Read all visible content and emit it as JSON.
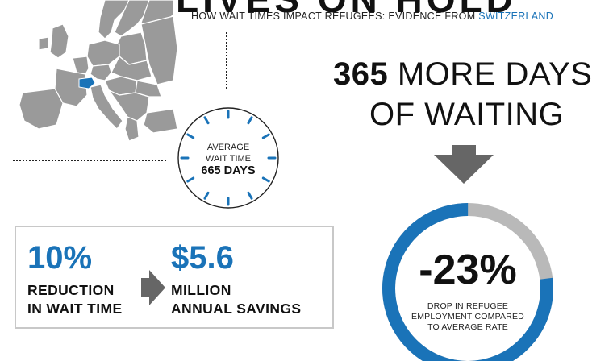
{
  "header": {
    "title": "LIVES ON HOLD",
    "subtitle_prefix": "HOW WAIT TIMES IMPACT REFUGEES: EVIDENCE FROM ",
    "subtitle_highlight": "SWITZERLAND"
  },
  "clock": {
    "line1": "AVERAGE",
    "line2": "WAIT TIME",
    "line3": "665 DAYS"
  },
  "headline": {
    "number": "365",
    "line1_rest": " MORE DAYS",
    "line2": "OF WAITING"
  },
  "ring": {
    "value": "-23%",
    "fraction": 0.23,
    "line1": "DROP IN REFUGEE",
    "line2": "EMPLOYMENT COMPARED",
    "line3": "TO AVERAGE RATE"
  },
  "savings": {
    "pct": "10%",
    "pct_line1": "REDUCTION",
    "pct_line2": "IN WAIT TIME",
    "amount": "$5.6",
    "amount_line1": "MILLION",
    "amount_line2": "ANNUAL SAVINGS"
  },
  "colors": {
    "accent": "#1a73b8",
    "gray": "#b9b9b9",
    "map": "#9a9a9a"
  },
  "icons": [
    "europe-map-icon",
    "clock-icon",
    "down-arrow-icon",
    "right-arrow-icon"
  ]
}
